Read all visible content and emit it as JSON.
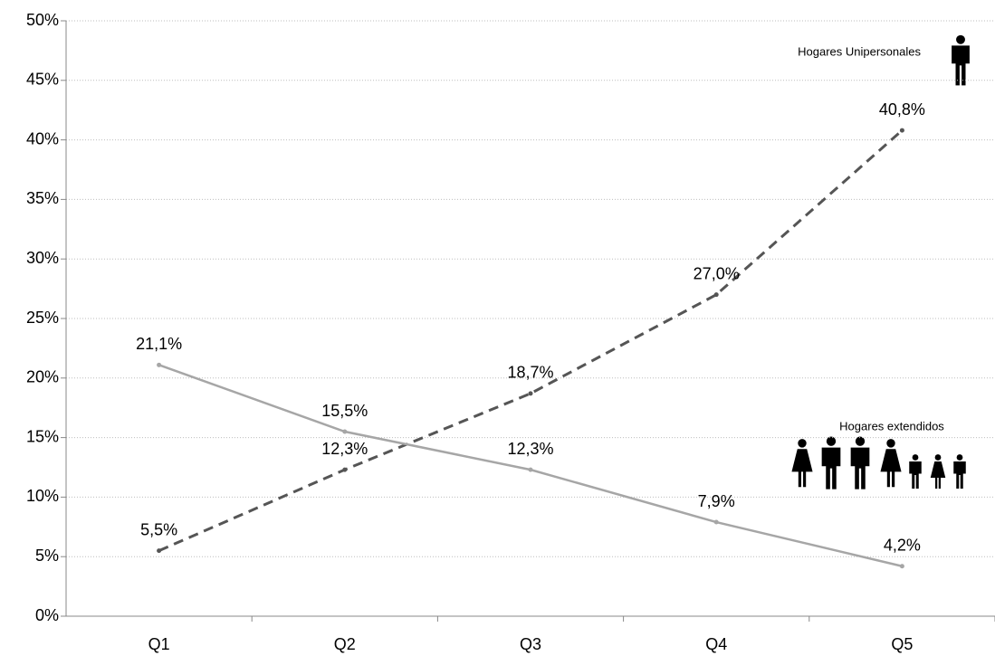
{
  "chart_data": {
    "type": "line",
    "categories": [
      "Q1",
      "Q2",
      "Q3",
      "Q4",
      "Q5"
    ],
    "series": [
      {
        "name": "Hogares Unipersonales",
        "color": "#555555",
        "dash": true,
        "values": [
          5.5,
          12.3,
          18.7,
          27.0,
          40.8
        ],
        "value_labels": [
          "5,5%",
          "12,3%",
          "18,7%",
          "27,0%",
          "40,8%"
        ]
      },
      {
        "name": "Hogares extendidos",
        "color": "#a6a6a6",
        "dash": false,
        "values": [
          21.1,
          15.5,
          12.3,
          7.9,
          4.2
        ],
        "value_labels": [
          "21,1%",
          "15,5%",
          "12,3%",
          "7,9%",
          "4,2%"
        ]
      }
    ],
    "ylim": [
      0,
      50
    ],
    "yticks": [
      {
        "value": 0,
        "label": "0%"
      },
      {
        "value": 5,
        "label": "5%"
      },
      {
        "value": 10,
        "label": "10%"
      },
      {
        "value": 15,
        "label": "15%"
      },
      {
        "value": 20,
        "label": "20%"
      },
      {
        "value": 25,
        "label": "25%"
      },
      {
        "value": 30,
        "label": "30%"
      },
      {
        "value": 35,
        "label": "35%"
      },
      {
        "value": 40,
        "label": "40%"
      },
      {
        "value": 45,
        "label": "45%"
      },
      {
        "value": 50,
        "label": "50%"
      }
    ],
    "grid": true
  }
}
